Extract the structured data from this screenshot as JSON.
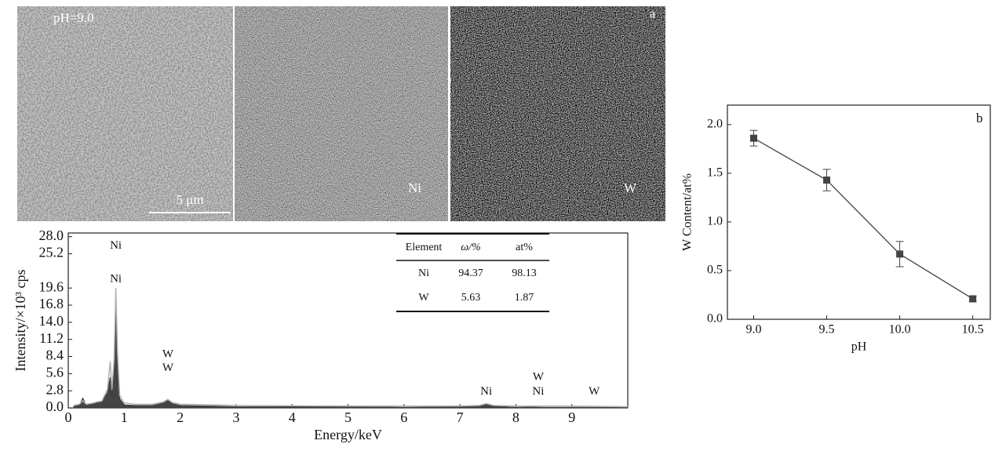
{
  "panel_a": {
    "label": "a",
    "micrographs": [
      {
        "label": "pH=9.0",
        "scale_bar": "5 μm"
      },
      {
        "label": "Ni"
      },
      {
        "label": "W"
      }
    ]
  },
  "chart_data": [
    {
      "type": "area",
      "xlabel": "Energy/keV",
      "ylabel": "Intensity/×10³ cps",
      "xlim": [
        0,
        10
      ],
      "ylim": [
        0,
        28.6
      ],
      "xticks": [
        0,
        1,
        2,
        3,
        4,
        5,
        6,
        7,
        8,
        9
      ],
      "yticks": [
        {
          "value": 0,
          "label": "0.0"
        },
        2.8,
        5.6,
        8.4,
        11.2,
        {
          "value": 14,
          "label": "14.0"
        },
        16.8,
        19.6,
        25.2,
        {
          "value": 28,
          "label": "28.0"
        }
      ],
      "x": [
        0.1,
        0.2,
        0.26,
        0.32,
        0.45,
        0.52,
        0.6,
        0.7,
        0.75,
        0.78,
        0.82,
        0.85,
        0.88,
        0.92,
        1.0,
        1.2,
        1.5,
        1.7,
        1.78,
        1.86,
        2.0,
        2.6,
        3.0,
        4.0,
        5.0,
        6.0,
        7.0,
        7.35,
        7.47,
        7.6,
        8.0,
        8.26,
        8.5,
        9.0,
        10.0
      ],
      "series": [
        {
          "color": "#3a3a3a",
          "fill": true,
          "values": [
            0.3,
            0.5,
            1.6,
            0.5,
            0.7,
            0.9,
            1.0,
            2.5,
            5.0,
            2.0,
            6.0,
            18.5,
            8.0,
            1.5,
            0.5,
            0.4,
            0.4,
            0.8,
            1.2,
            0.7,
            0.4,
            0.3,
            0.2,
            0.2,
            0.2,
            0.1,
            0.2,
            0.3,
            0.6,
            0.3,
            0.1,
            0.15,
            0.1,
            0.1,
            0.1
          ]
        },
        {
          "color": "#b0b0b0",
          "fill": false,
          "values": [
            0.4,
            0.6,
            1.2,
            0.6,
            0.8,
            1.0,
            1.1,
            3.0,
            7.6,
            3.0,
            8.0,
            19.6,
            9.0,
            2.0,
            0.8,
            0.6,
            0.6,
            1.0,
            1.4,
            0.9,
            0.6,
            0.5,
            0.4,
            0.35,
            0.3,
            0.3,
            0.3,
            0.4,
            0.7,
            0.4,
            0.3,
            0.3,
            0.3,
            0.3,
            0.2
          ]
        }
      ],
      "annotations": [
        {
          "text": "Ni",
          "x": 0.85,
          "y": 26.5
        },
        {
          "text": "Ni",
          "x": 0.85,
          "y": 21.0
        },
        {
          "text": "W",
          "x": 1.78,
          "y": 8.7
        },
        {
          "text": "W",
          "x": 1.78,
          "y": 6.5
        },
        {
          "text": "Ni",
          "x": 7.47,
          "y": 2.6
        },
        {
          "text": "W",
          "x": 8.4,
          "y": 5.0
        },
        {
          "text": "Ni",
          "x": 8.4,
          "y": 2.6
        },
        {
          "text": "W",
          "x": 9.4,
          "y": 2.6
        }
      ],
      "table": {
        "header": [
          "Element",
          "ω/%",
          "at%"
        ],
        "rows": [
          [
            "Ni",
            "94.37",
            "98.13"
          ],
          [
            "W",
            "5.63",
            "1.87"
          ]
        ]
      }
    },
    {
      "type": "line",
      "label": "b",
      "xlabel": "pH",
      "ylabel": "W Content/at%",
      "x": [
        9.0,
        9.5,
        10.0,
        10.5
      ],
      "series": [
        {
          "color": "#444444",
          "values": [
            1.86,
            1.43,
            0.67,
            0.21
          ],
          "errors": [
            0.08,
            0.11,
            0.13,
            0.03
          ]
        }
      ],
      "xlim": [
        8.82,
        10.62
      ],
      "ylim": [
        0,
        2.2
      ],
      "xticks": [
        {
          "value": 9,
          "label": "9.0"
        },
        9.5,
        {
          "value": 10,
          "label": "10.0"
        },
        10.5
      ],
      "yticks": [
        {
          "value": 0,
          "label": "0.0"
        },
        0.5,
        {
          "value": 1,
          "label": "1.0"
        },
        1.5,
        {
          "value": 2,
          "label": "2.0"
        }
      ],
      "marker": "square"
    }
  ]
}
